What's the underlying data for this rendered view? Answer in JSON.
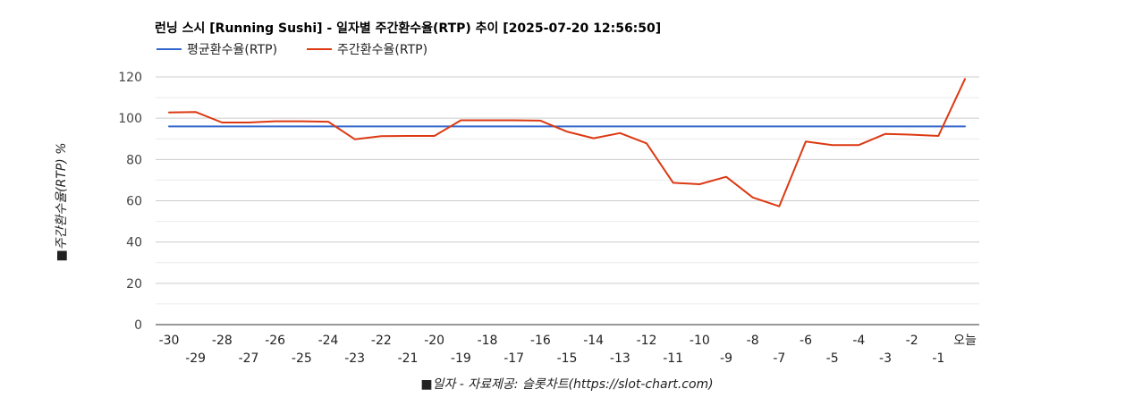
{
  "chart_data": {
    "type": "line",
    "title": "런닝 스시 [Running Sushi] - 일자별 주간환수율(RTP) 추이 [2025-07-20 12:56:50]",
    "xlabel": "■일자 - 자료제공: 슬롯차트(https://slot-chart.com)",
    "ylabel": "■주간환수율(RTP) %",
    "ylim": [
      0,
      120
    ],
    "yticks": [
      0,
      20,
      40,
      60,
      80,
      100,
      120
    ],
    "grid": true,
    "legend_position": "top-left",
    "categories": [
      "-30",
      "-29",
      "-28",
      "-27",
      "-26",
      "-25",
      "-24",
      "-23",
      "-22",
      "-21",
      "-20",
      "-19",
      "-18",
      "-17",
      "-16",
      "-15",
      "-14",
      "-13",
      "-12",
      "-11",
      "-10",
      "-9",
      "-8",
      "-7",
      "-6",
      "-5",
      "-4",
      "-3",
      "-2",
      "-1",
      "오늘"
    ],
    "series": [
      {
        "name": "평균환수율(RTP)",
        "color": "#3366cc",
        "values": [
          96,
          96,
          96,
          96,
          96,
          96,
          96,
          96,
          96,
          96,
          96,
          96,
          96,
          96,
          96,
          96,
          96,
          96,
          96,
          96,
          96,
          96,
          96,
          96,
          96,
          96,
          96,
          96,
          96,
          96,
          96
        ]
      },
      {
        "name": "주간환수율(RTP)",
        "color": "#dc3912",
        "values": [
          102.8,
          103,
          97.9,
          97.9,
          98.5,
          98.5,
          98.3,
          89.8,
          91.3,
          91.4,
          91.4,
          99,
          99,
          99,
          98.8,
          93.5,
          90.3,
          92.8,
          87.8,
          68.7,
          68,
          71.6,
          61.6,
          57.3,
          88.7,
          87,
          87,
          92.4,
          92,
          91.4,
          119
        ]
      }
    ]
  }
}
